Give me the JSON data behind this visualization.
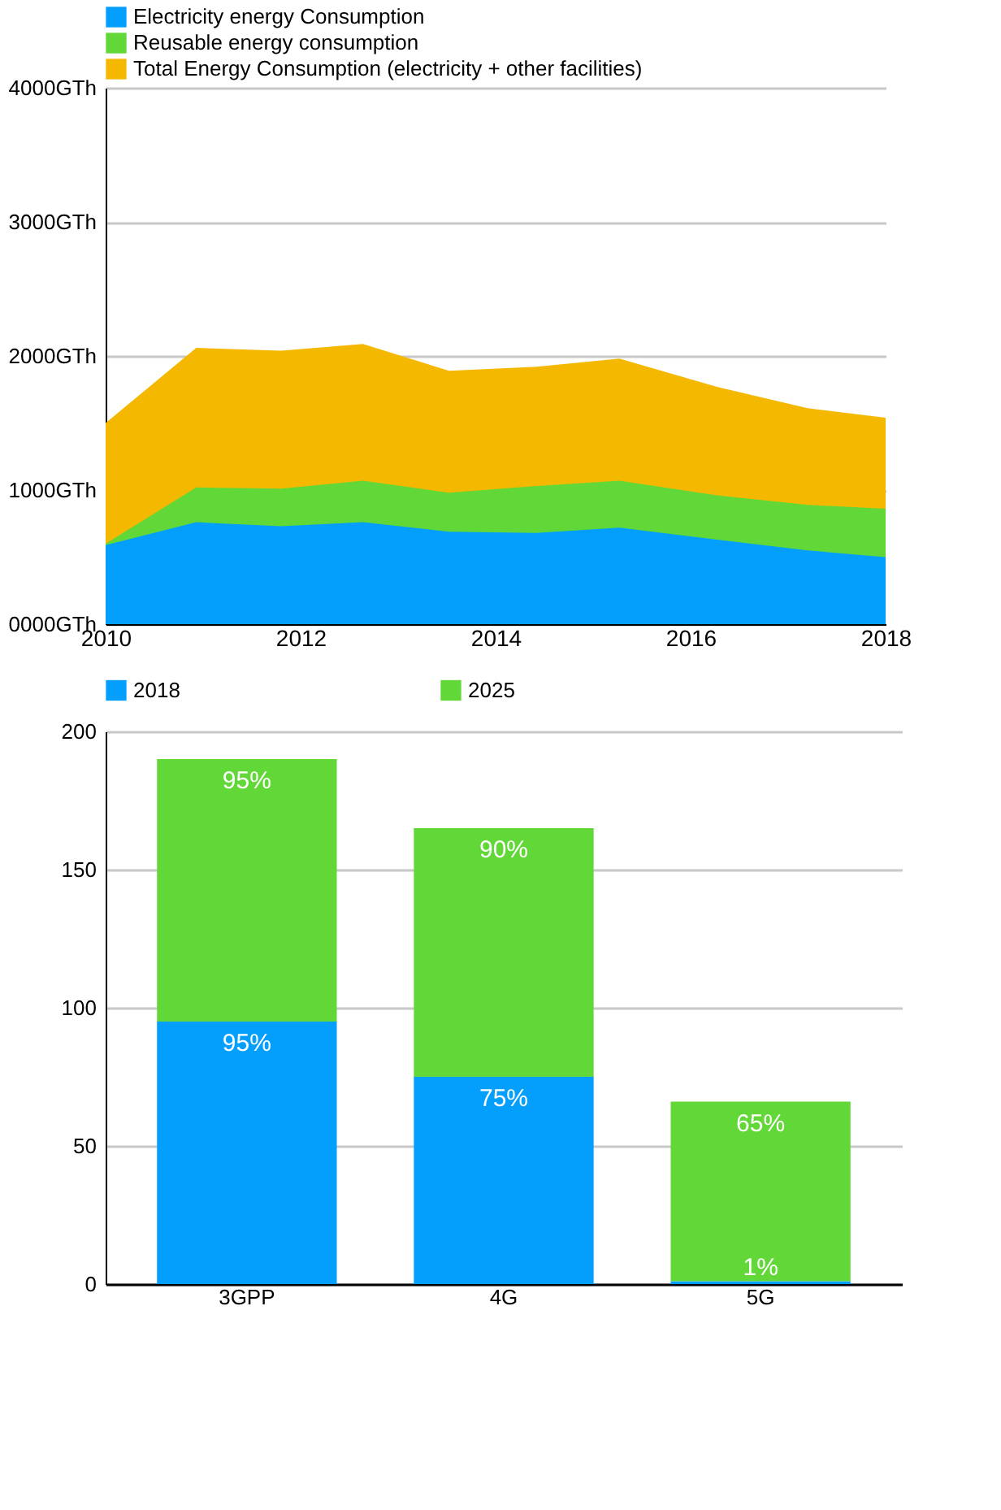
{
  "chart_data": [
    {
      "type": "area",
      "x": [
        2010,
        2010.93,
        2011.8,
        2012.64,
        2013.52,
        2014.42,
        2015.27,
        2016.27,
        2017.2,
        2018
      ],
      "series": [
        {
          "name": "Electricity energy Consumption",
          "color": "#049ffd",
          "values": [
            590,
            760,
            730,
            760,
            690,
            680,
            720,
            630,
            550,
            500
          ]
        },
        {
          "name": "Reusable energy consumption",
          "color": "#62d838",
          "values": [
            600,
            1020,
            1010,
            1070,
            980,
            1030,
            1070,
            960,
            890,
            860
          ]
        },
        {
          "name": "Total Energy Consumption (electricity + other facilities)",
          "color": "#f5b800",
          "values": [
            1500,
            2060,
            2040,
            2090,
            1890,
            1920,
            1980,
            1770,
            1610,
            1540
          ]
        }
      ],
      "xlim": [
        2010,
        2018
      ],
      "xticks": [
        2010,
        2012,
        2014,
        2016,
        2018
      ],
      "ylim": [
        0,
        4000
      ],
      "yticks": [
        {
          "value": 0,
          "label": "0000GTh"
        },
        {
          "value": 1000,
          "label": "1000GTh"
        },
        {
          "value": 2000,
          "label": "2000GTh"
        },
        {
          "value": 3000,
          "label": "3000GTh"
        },
        {
          "value": 4000,
          "label": "4000GTh"
        }
      ],
      "grid": "y",
      "legend": "top left"
    },
    {
      "type": "bar",
      "stacked": true,
      "categories": [
        "3GPP",
        "4G",
        "5G"
      ],
      "series": [
        {
          "name": "2018",
          "color": "#049ffd",
          "values": [
            95,
            75,
            1
          ],
          "value_labels": [
            "95%",
            "75%",
            "1%"
          ]
        },
        {
          "name": "2025",
          "color": "#62d838",
          "values": [
            95,
            90,
            65
          ],
          "value_labels": [
            "95%",
            "90%",
            "65%"
          ]
        }
      ],
      "ylim": [
        0,
        200
      ],
      "yticks": [
        0,
        50,
        100,
        150,
        200
      ],
      "grid": "y",
      "legend": "top"
    }
  ]
}
